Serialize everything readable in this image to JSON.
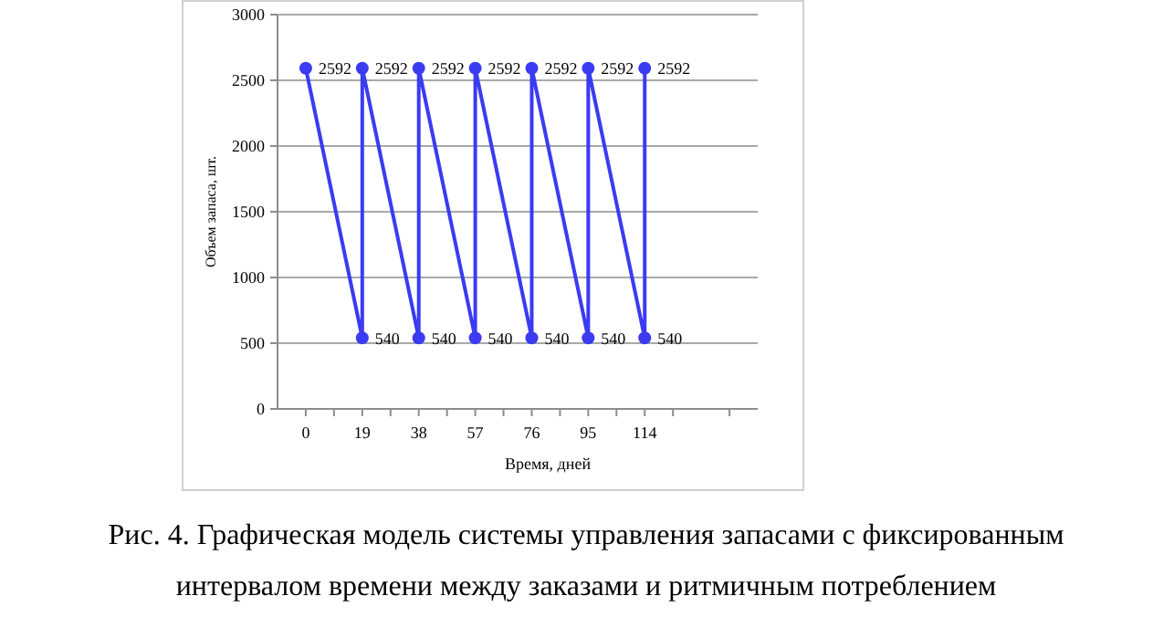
{
  "chart_data": {
    "type": "line",
    "title": "Рис. 4. Графическая модель системы управления запасами с фиксированным интервалом времени между заказами и ритмичным потреблением",
    "xlabel": "Время, дней",
    "ylabel": "Объем запаса, шт.",
    "x": [
      0,
      19,
      19,
      38,
      38,
      57,
      57,
      76,
      76,
      95,
      95,
      114,
      114
    ],
    "series": [
      {
        "color": "#3b3bf2",
        "values": [
          2592,
          540,
          2592,
          540,
          2592,
          540,
          2592,
          540,
          2592,
          540,
          2592,
          540,
          2592
        ],
        "value_labels": [
          "2592",
          "540",
          "2592",
          "540",
          "2592",
          "540",
          "2592",
          "540",
          "2592",
          "540",
          "2592",
          "540",
          "2592"
        ]
      }
    ],
    "xlim": [
      -9.5,
      152
    ],
    "xticks": [
      0,
      {
        "value": 9.5,
        "label": null
      },
      19,
      {
        "value": 28.5,
        "label": null
      },
      38,
      {
        "value": 47.5,
        "label": null
      },
      57,
      {
        "value": 66.5,
        "label": null
      },
      76,
      {
        "value": 85.5,
        "label": null
      },
      95,
      {
        "value": 104.5,
        "label": null
      },
      114,
      {
        "value": 123.5,
        "label": null
      },
      {
        "value": 142.5,
        "label": null
      }
    ],
    "ylim": [
      0,
      3000
    ],
    "yticks": [
      0,
      500,
      1000,
      1500,
      2000,
      2500,
      3000
    ],
    "grid": "y",
    "marker": "circle",
    "line_style": "solid"
  }
}
